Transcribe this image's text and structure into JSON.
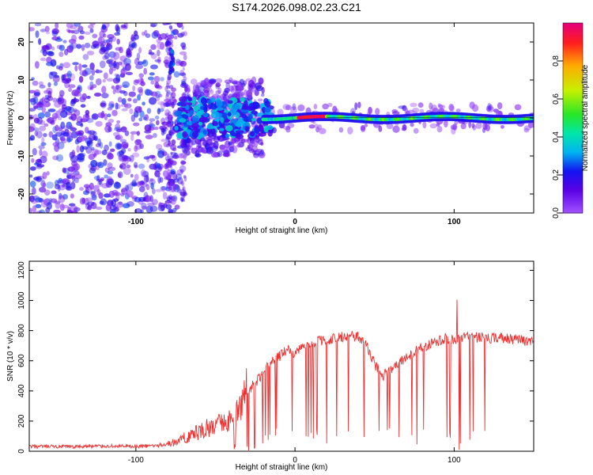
{
  "title": "S174.2026.098.02.23.C21",
  "chart_data": [
    {
      "type": "heatmap",
      "xlabel": "Height of straight line (km)",
      "ylabel": "Frequency (Hz)",
      "xlim": [
        -167,
        150
      ],
      "ylim": [
        -25,
        25
      ],
      "xticks": [
        -100,
        0,
        100
      ],
      "yticks": [
        -20,
        -10,
        0,
        10,
        20
      ],
      "ridge": {
        "description_points": [
          {
            "x": -78,
            "y": 14,
            "v": 0.25
          },
          {
            "x": -70,
            "y": -2,
            "v": 0.3
          },
          {
            "x": -60,
            "y": -1,
            "v": 0.3
          },
          {
            "x": -40,
            "y": 0,
            "v": 0.35
          },
          {
            "x": -20,
            "y": 1,
            "v": 0.45
          },
          {
            "x": -5,
            "y": 0.5,
            "v": 0.55
          },
          {
            "x": 10,
            "y": 0,
            "v": 0.95
          },
          {
            "x": 40,
            "y": 0,
            "v": 0.5
          },
          {
            "x": 100,
            "y": 0.5,
            "v": 0.55
          },
          {
            "x": 150,
            "y": 0.5,
            "v": 0.5
          }
        ]
      },
      "colorbar": {
        "label": "Normalized spectral amplitude",
        "ticks": [
          0.0,
          0.2,
          0.4,
          0.6,
          0.8
        ],
        "tick_labels": [
          "0.0",
          "0.2",
          "0.4",
          "0.6",
          "0.8"
        ],
        "range": [
          0,
          1
        ]
      }
    },
    {
      "type": "line",
      "xlabel": "Height of straight line (km)",
      "ylabel": "SNR (10 * v/v)",
      "xlim": [
        -167,
        150
      ],
      "ylim": [
        0,
        1260
      ],
      "xticks": [
        -100,
        0,
        100
      ],
      "yticks": [
        0,
        200,
        400,
        600,
        800,
        1000,
        1200
      ],
      "series": [
        {
          "name": "SNR",
          "color": "#ee3030",
          "x": [
            -167,
            -140,
            -120,
            -100,
            -85,
            -75,
            -65,
            -55,
            -45,
            -35,
            -30,
            -25,
            -20,
            -15,
            -10,
            -5,
            0,
            5,
            10,
            20,
            30,
            40,
            45,
            50,
            55,
            60,
            70,
            80,
            90,
            95,
            100,
            105,
            110,
            120,
            130,
            140,
            150
          ],
          "y": [
            30,
            30,
            35,
            30,
            40,
            60,
            110,
            150,
            190,
            250,
            400,
            450,
            520,
            600,
            630,
            670,
            640,
            700,
            720,
            740,
            760,
            760,
            700,
            580,
            500,
            540,
            620,
            690,
            730,
            750,
            740,
            760,
            760,
            750,
            750,
            740,
            720
          ]
        }
      ]
    }
  ]
}
